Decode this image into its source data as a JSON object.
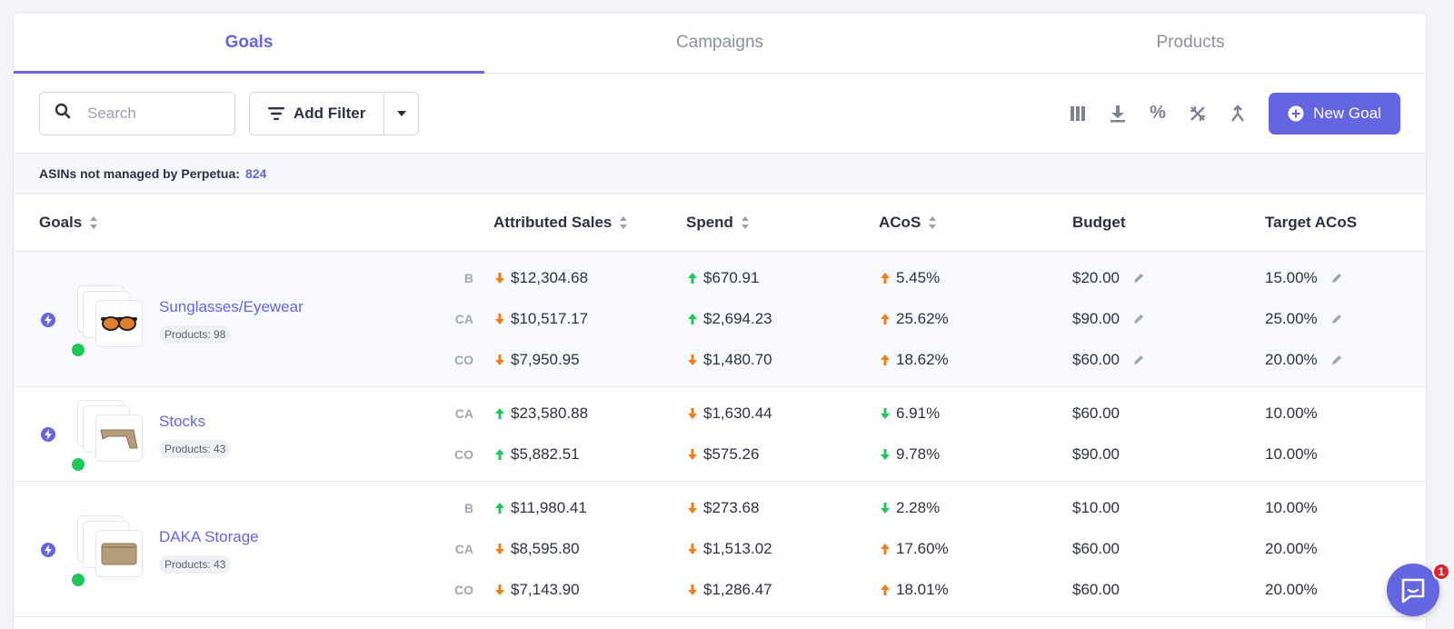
{
  "tabs": [
    {
      "label": "Goals",
      "active": true
    },
    {
      "label": "Campaigns",
      "active": false
    },
    {
      "label": "Products",
      "active": false
    }
  ],
  "toolbar": {
    "search_placeholder": "Search",
    "filter_label": "Add Filter",
    "new_goal_label": "New Goal",
    "percent_symbol": "%"
  },
  "asin_bar": {
    "label": "ASINs not managed by Perpetua:",
    "count": "824"
  },
  "columns": {
    "goals": "Goals",
    "sales": "Attributed Sales",
    "spend": "Spend",
    "acos": "ACoS",
    "budget": "Budget",
    "target": "Target ACoS"
  },
  "goals": [
    {
      "name": "Sunglasses/Eyewear",
      "products": "Products: 98",
      "thumbnail": "sunglasses",
      "rows": [
        {
          "code": "B",
          "sales": "$12,304.68",
          "sales_dir": "down",
          "spend": "$670.91",
          "spend_dir": "up",
          "acos": "5.45%",
          "acos_dir": "up",
          "budget": "$20.00",
          "target": "15.00%",
          "editable": true
        },
        {
          "code": "CA",
          "sales": "$10,517.17",
          "sales_dir": "down",
          "spend": "$2,694.23",
          "spend_dir": "up",
          "acos": "25.62%",
          "acos_dir": "up",
          "budget": "$90.00",
          "target": "25.00%",
          "editable": true
        },
        {
          "code": "CO",
          "sales": "$7,950.95",
          "sales_dir": "down",
          "spend": "$1,480.70",
          "spend_dir": "down",
          "acos": "18.62%",
          "acos_dir": "up",
          "budget": "$60.00",
          "target": "20.00%",
          "editable": true
        }
      ]
    },
    {
      "name": "Stocks",
      "products": "Products: 43",
      "thumbnail": "stock",
      "rows": [
        {
          "code": "CA",
          "sales": "$23,580.88",
          "sales_dir": "up",
          "spend": "$1,630.44",
          "spend_dir": "down",
          "acos": "6.91%",
          "acos_dir": "down",
          "budget": "$60.00",
          "target": "10.00%",
          "editable": false
        },
        {
          "code": "CO",
          "sales": "$5,882.51",
          "sales_dir": "up",
          "spend": "$575.26",
          "spend_dir": "down",
          "acos": "9.78%",
          "acos_dir": "down",
          "budget": "$90.00",
          "target": "10.00%",
          "editable": false
        }
      ]
    },
    {
      "name": "DAKA Storage",
      "products": "Products: 43",
      "thumbnail": "pouch",
      "rows": [
        {
          "code": "B",
          "sales": "$11,980.41",
          "sales_dir": "up",
          "spend": "$273.68",
          "spend_dir": "down",
          "acos": "2.28%",
          "acos_dir": "down",
          "budget": "$10.00",
          "target": "10.00%",
          "editable": false
        },
        {
          "code": "CA",
          "sales": "$8,595.80",
          "sales_dir": "down",
          "spend": "$1,513.02",
          "spend_dir": "down",
          "acos": "17.60%",
          "acos_dir": "up",
          "budget": "$60.00",
          "target": "20.00%",
          "editable": false
        },
        {
          "code": "CO",
          "sales": "$7,143.90",
          "sales_dir": "down",
          "spend": "$1,286.47",
          "spend_dir": "down",
          "acos": "18.01%",
          "acos_dir": "up",
          "budget": "$60.00",
          "target": "20.00%",
          "editable": false
        }
      ]
    }
  ],
  "chat": {
    "badge": "1"
  },
  "colors": {
    "accent": "#6366e0",
    "up": "#1ec75a",
    "down": "#f07d1a",
    "status_dot": "#1ec75a",
    "badge": "#e0242b"
  }
}
